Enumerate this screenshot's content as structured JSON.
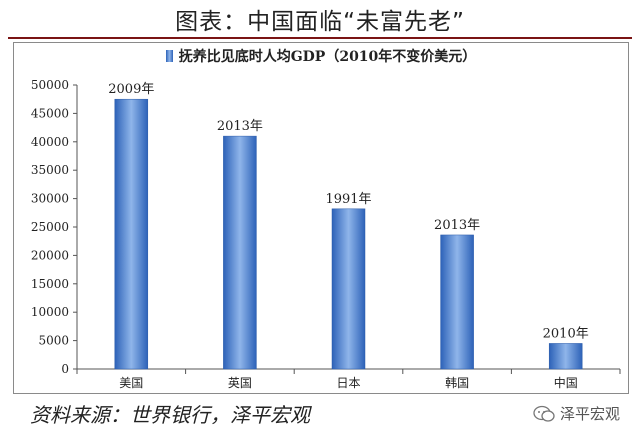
{
  "page_title": "图表：中国面临“未富先老”",
  "source": "资料来源：世界银行，泽平宏观",
  "watermark": "泽平宏观",
  "watermark_icon": "wechat-icon",
  "colors": {
    "bar_dark": "#2d62b8",
    "bar_light": "#8fb5ea",
    "title_rule": "#7a1414"
  },
  "chart_data": {
    "type": "bar",
    "title": "",
    "legend": [
      "抚养比见底时人均GDP（2010年不变价美元）"
    ],
    "legend_position": "top",
    "categories": [
      "美国",
      "英国",
      "日本",
      "韩国",
      "中国"
    ],
    "series": [
      {
        "name": "抚养比见底时人均GDP（2010年不变价美元）",
        "values": [
          47500,
          41000,
          28200,
          23600,
          4500
        ]
      }
    ],
    "data_labels": [
      "2009年",
      "2013年",
      "1991年",
      "2013年",
      "2010年"
    ],
    "yticks": [
      0,
      5000,
      10000,
      15000,
      20000,
      25000,
      30000,
      35000,
      40000,
      45000,
      50000
    ],
    "ylim": [
      0,
      50000
    ],
    "xlabel": "",
    "ylabel": "",
    "grid": false
  }
}
